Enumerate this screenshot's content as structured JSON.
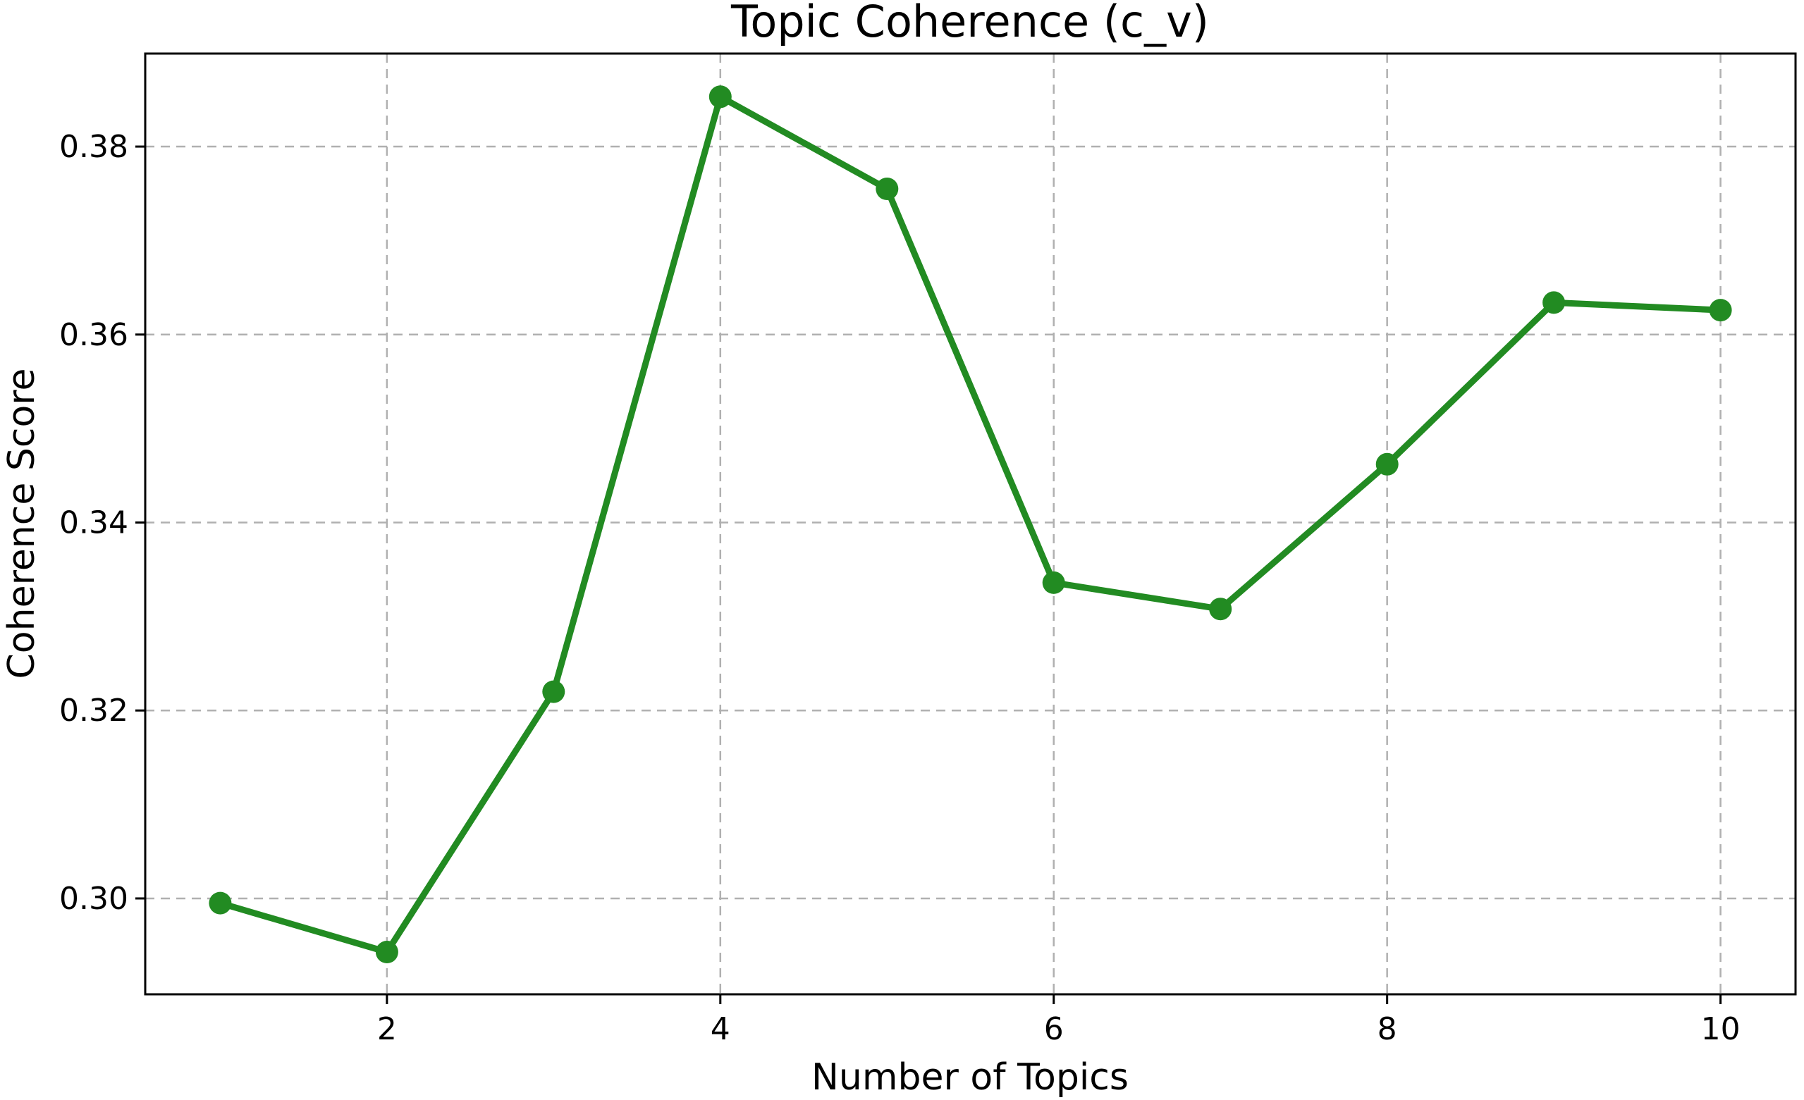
{
  "figure": {
    "kind": "matplotlib-line-plot",
    "background": "#ffffff"
  },
  "chart_data": {
    "type": "line",
    "title": "Topic Coherence (c_v)",
    "xlabel": "Number of Topics",
    "ylabel": "Coherence Score",
    "x": [
      1,
      2,
      3,
      4,
      5,
      6,
      7,
      8,
      9,
      10
    ],
    "series": [
      {
        "name": "coherence_score",
        "values": [
          0.2995,
          0.2943,
          0.322,
          0.3853,
          0.3755,
          0.3336,
          0.3308,
          0.3462,
          0.3634,
          0.3626
        ]
      }
    ],
    "xticks": [
      2,
      4,
      6,
      8,
      10
    ],
    "xtick_labels": [
      "2",
      "4",
      "6",
      "8",
      "10"
    ],
    "yticks": [
      0.3,
      0.32,
      0.34,
      0.36,
      0.38
    ],
    "ytick_labels": [
      "0.30",
      "0.32",
      "0.34",
      "0.36",
      "0.38"
    ],
    "xlim": [
      0.55,
      10.45
    ],
    "ylim": [
      0.2898,
      0.3899
    ],
    "grid": true,
    "grid_style": "dashed",
    "legend_position": "none",
    "line_color": "#228B22",
    "marker": "circle",
    "marker_color": "#228B22",
    "axis_color": "#000000",
    "grid_color": "#b0b0b0",
    "plot_background": "#ffffff"
  }
}
